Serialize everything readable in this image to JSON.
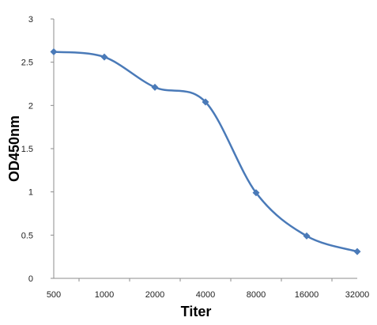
{
  "chart_data": {
    "type": "line",
    "title": "",
    "xlabel": "Titer",
    "ylabel": "OD450nm",
    "categories": [
      "500",
      "1000",
      "2000",
      "4000",
      "8000",
      "16000",
      "32000"
    ],
    "series": [
      {
        "values": [
          2.62,
          2.56,
          2.21,
          2.04,
          0.99,
          0.49,
          0.31
        ]
      }
    ],
    "ylim": [
      0,
      3
    ],
    "yticks": [
      "0",
      "0.5",
      "1",
      "1.5",
      "2",
      "2.5",
      "3"
    ],
    "grid": false,
    "legend": "none",
    "marker": "diamond",
    "smooth": true,
    "colors": {
      "line": "#4a7ab8",
      "marker": "#4a7ab8",
      "axis": "#8c8c8c"
    }
  }
}
